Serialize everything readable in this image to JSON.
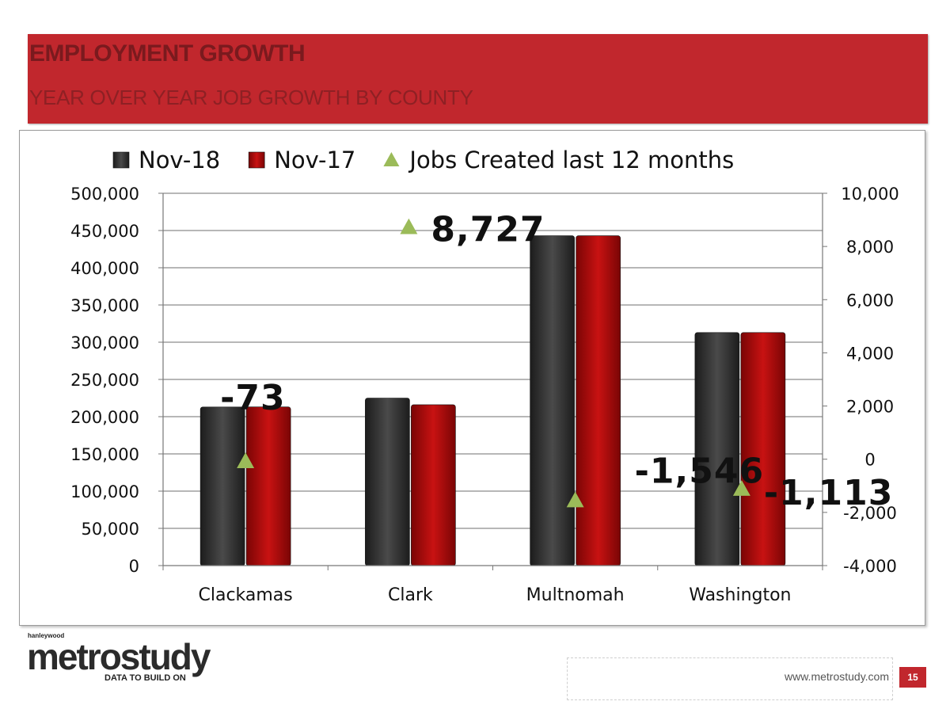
{
  "header": {
    "title": "EMPLOYMENT GROWTH",
    "subtitle": "YEAR OVER YEAR JOB GROWTH BY COUNTY"
  },
  "chart_data": {
    "type": "bar",
    "categories": [
      "Clackamas",
      "Clark",
      "Multnomah",
      "Washington"
    ],
    "series": [
      {
        "name": "Nov-18",
        "axis": "left",
        "color": "#333333",
        "values": [
          213000,
          225000,
          443000,
          313000
        ]
      },
      {
        "name": "Nov-17",
        "axis": "left",
        "color": "#b00b0b",
        "values": [
          213100,
          216000,
          443000,
          313000
        ]
      },
      {
        "name": "Jobs Created last 12 months",
        "axis": "right",
        "kind": "scatter",
        "marker": "triangle",
        "color": "#9bbb59",
        "values": [
          -73,
          8727,
          -1546,
          -1113
        ]
      }
    ],
    "data_labels": [
      "-73",
      "8,727",
      "-1,546",
      "-1,113"
    ],
    "ylim": [
      0,
      500000
    ],
    "y2lim": [
      -4000,
      10000
    ],
    "yticks": [
      "0",
      "50,000",
      "100,000",
      "150,000",
      "200,000",
      "250,000",
      "300,000",
      "350,000",
      "400,000",
      "450,000",
      "500,000"
    ],
    "y2ticks": [
      "-4,000",
      "-2,000",
      "0",
      "2,000",
      "4,000",
      "6,000",
      "8,000",
      "10,000"
    ],
    "grid": true,
    "legend": "top"
  },
  "footer": {
    "url": "www.metrostudy.com",
    "page": "15"
  },
  "logo": {
    "brand": "metrostudy",
    "parent": "hanleywood",
    "tagline": "DATA TO BUILD ON"
  }
}
